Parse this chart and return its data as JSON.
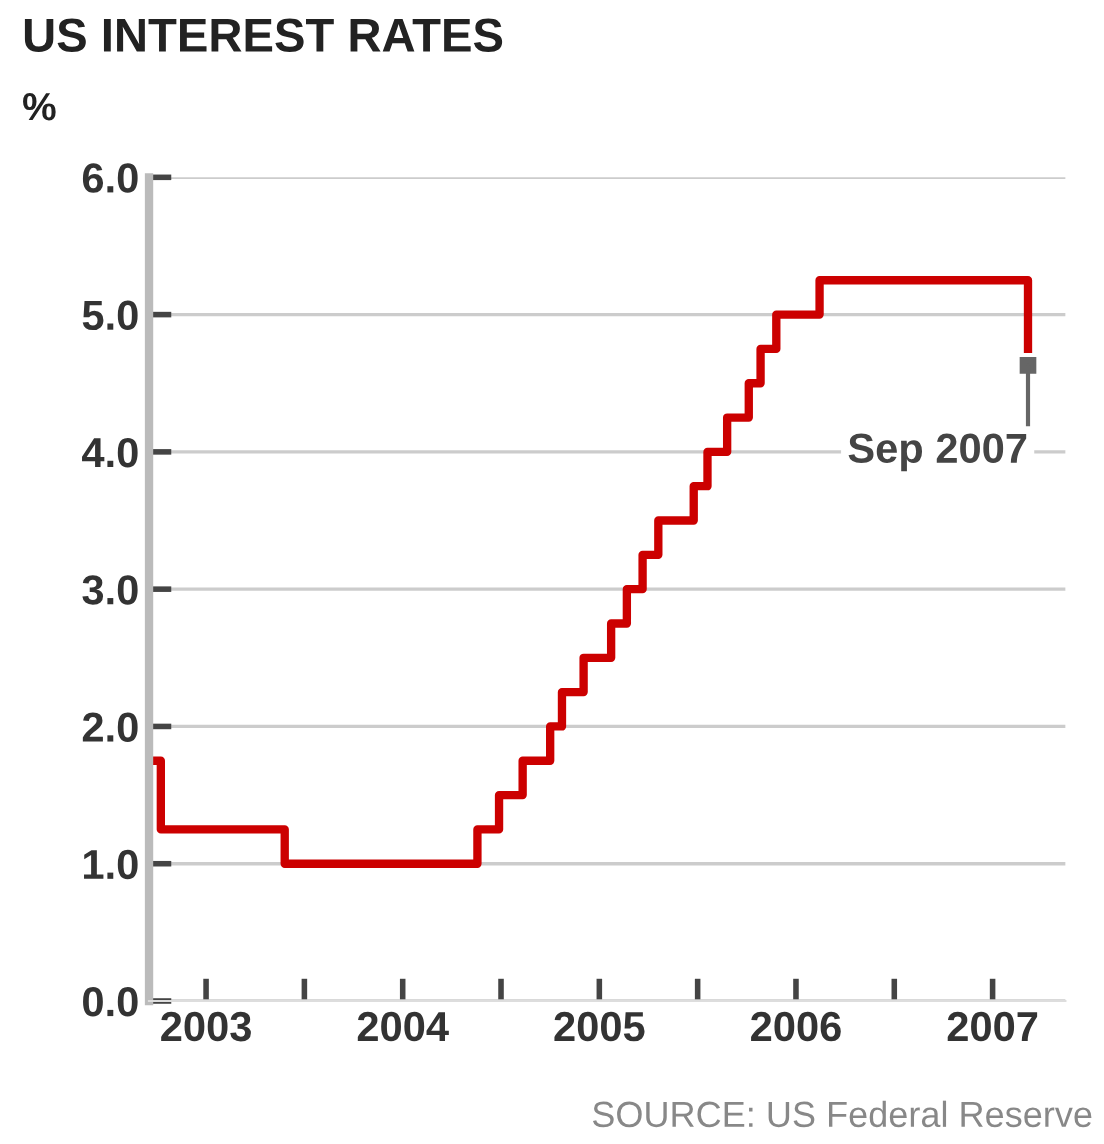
{
  "chart_data": {
    "type": "step",
    "title": "US INTEREST RATES",
    "ylabel": "%",
    "x": [
      2003.25,
      2003.27,
      2003.9,
      2004.88,
      2004.99,
      2005.11,
      2005.25,
      2005.31,
      2005.42,
      2005.56,
      2005.64,
      2005.72,
      2005.8,
      2005.98,
      2006.05,
      2006.15,
      2006.26,
      2006.32,
      2006.4,
      2006.62,
      2007.68
    ],
    "series": [
      {
        "color": "#cc0000",
        "values": [
          1.75,
          1.25,
          1.0,
          1.25,
          1.5,
          1.75,
          2.0,
          2.25,
          2.5,
          2.75,
          3.0,
          3.25,
          3.5,
          3.75,
          4.0,
          4.25,
          4.5,
          4.75,
          5.0,
          5.25,
          4.75
        ]
      }
    ],
    "xlim": [
      2003.21,
      2007.87
    ],
    "xticks": [
      {
        "value": 2003.5,
        "label": "2003"
      },
      {
        "value": 2004,
        "label": null
      },
      {
        "value": 2004.5,
        "label": "2004"
      },
      {
        "value": 2005,
        "label": null
      },
      {
        "value": 2005.5,
        "label": "2005"
      },
      {
        "value": 2006,
        "label": null
      },
      {
        "value": 2006.5,
        "label": "2006"
      },
      {
        "value": 2007,
        "label": null
      },
      {
        "value": 2007.5,
        "label": "2007"
      }
    ],
    "ylim": [
      0,
      6
    ],
    "yticks": [
      {
        "value": 0,
        "label": "0.0"
      },
      {
        "value": 1,
        "label": "1.0"
      },
      {
        "value": 2,
        "label": "2.0"
      },
      {
        "value": 3,
        "label": "3.0"
      },
      {
        "value": 4,
        "label": "4.0"
      },
      {
        "value": 5,
        "label": "5.0"
      },
      {
        "value": 6,
        "label": "6.0"
      }
    ],
    "grid": "y",
    "line_style": "solid",
    "annotations": [
      {
        "text": "Sep 2007",
        "x": 2007.68,
        "y": 4.75
      },
      "SOURCE: US Federal Reserve"
    ]
  }
}
